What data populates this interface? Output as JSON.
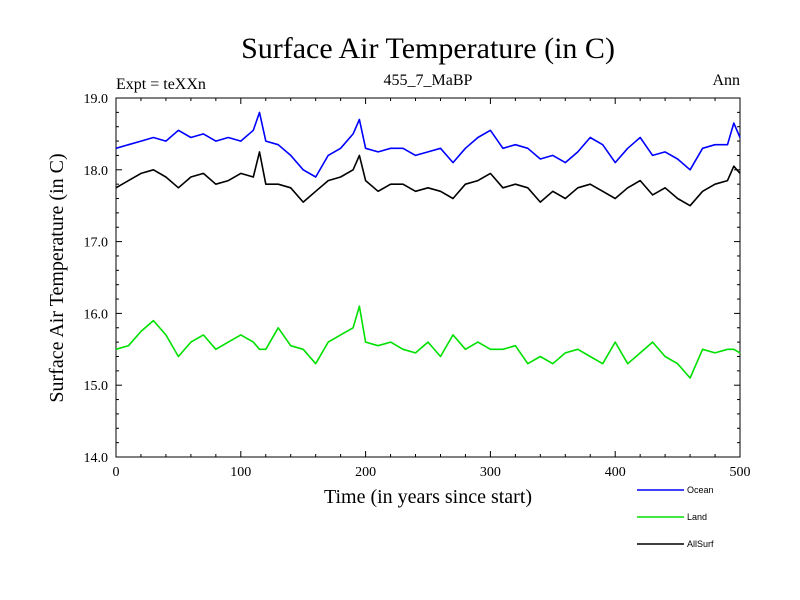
{
  "header": {
    "title": "Surface Air Temperature (in C)",
    "left_label": "Expt = teXXn",
    "center_label": "455_7_MaBP",
    "right_label": "Ann"
  },
  "chart_data": {
    "type": "line",
    "title": "Surface Air Temperature (in C)",
    "xlabel": "Time (in years since start)",
    "ylabel": "Surface Air Temperature (in C)",
    "xlim": [
      0,
      500
    ],
    "ylim": [
      14.0,
      19.0
    ],
    "x_ticks": [
      0,
      100,
      200,
      300,
      400,
      500
    ],
    "x_tick_labels": [
      "0",
      "100",
      "200",
      "300",
      "400",
      "500"
    ],
    "y_ticks": [
      14.0,
      15.0,
      16.0,
      17.0,
      18.0,
      19.0
    ],
    "y_tick_labels": [
      "14.0",
      "15.0",
      "16.0",
      "17.0",
      "18.0",
      "19.0"
    ],
    "legend_position": "below-right",
    "x": [
      0,
      10,
      20,
      30,
      40,
      50,
      60,
      70,
      80,
      90,
      100,
      110,
      115,
      120,
      130,
      140,
      150,
      160,
      170,
      180,
      190,
      195,
      200,
      210,
      220,
      230,
      240,
      250,
      260,
      270,
      280,
      290,
      300,
      310,
      320,
      330,
      340,
      350,
      360,
      370,
      380,
      390,
      400,
      410,
      420,
      430,
      440,
      450,
      460,
      470,
      480,
      490,
      495,
      500
    ],
    "series": [
      {
        "name": "Ocean",
        "color": "#0000ff",
        "values": [
          18.3,
          18.35,
          18.4,
          18.45,
          18.4,
          18.55,
          18.45,
          18.5,
          18.4,
          18.45,
          18.4,
          18.55,
          18.8,
          18.4,
          18.35,
          18.2,
          18.0,
          17.9,
          18.2,
          18.3,
          18.5,
          18.7,
          18.3,
          18.25,
          18.3,
          18.3,
          18.2,
          18.25,
          18.3,
          18.1,
          18.3,
          18.45,
          18.55,
          18.3,
          18.35,
          18.3,
          18.15,
          18.2,
          18.1,
          18.25,
          18.45,
          18.35,
          18.1,
          18.3,
          18.45,
          18.2,
          18.25,
          18.15,
          18.0,
          18.3,
          18.35,
          18.35,
          18.65,
          18.45
        ]
      },
      {
        "name": "Land",
        "color": "#00e000",
        "values": [
          15.5,
          15.55,
          15.75,
          15.9,
          15.7,
          15.4,
          15.6,
          15.7,
          15.5,
          15.6,
          15.7,
          15.6,
          15.5,
          15.5,
          15.8,
          15.55,
          15.5,
          15.3,
          15.6,
          15.7,
          15.8,
          16.1,
          15.6,
          15.55,
          15.6,
          15.5,
          15.45,
          15.6,
          15.4,
          15.7,
          15.5,
          15.6,
          15.5,
          15.5,
          15.55,
          15.3,
          15.4,
          15.3,
          15.45,
          15.5,
          15.4,
          15.3,
          15.6,
          15.3,
          15.45,
          15.6,
          15.4,
          15.3,
          15.1,
          15.5,
          15.45,
          15.5,
          15.5,
          15.45
        ]
      },
      {
        "name": "AllSurf",
        "color": "#000000",
        "values": [
          17.75,
          17.85,
          17.95,
          18.0,
          17.9,
          17.75,
          17.9,
          17.95,
          17.8,
          17.85,
          17.95,
          17.9,
          18.25,
          17.8,
          17.8,
          17.75,
          17.55,
          17.7,
          17.85,
          17.9,
          18.0,
          18.2,
          17.85,
          17.7,
          17.8,
          17.8,
          17.7,
          17.75,
          17.7,
          17.6,
          17.8,
          17.85,
          17.95,
          17.75,
          17.8,
          17.75,
          17.55,
          17.7,
          17.6,
          17.75,
          17.8,
          17.7,
          17.6,
          17.75,
          17.85,
          17.65,
          17.75,
          17.6,
          17.5,
          17.7,
          17.8,
          17.85,
          18.05,
          17.95
        ]
      }
    ]
  }
}
